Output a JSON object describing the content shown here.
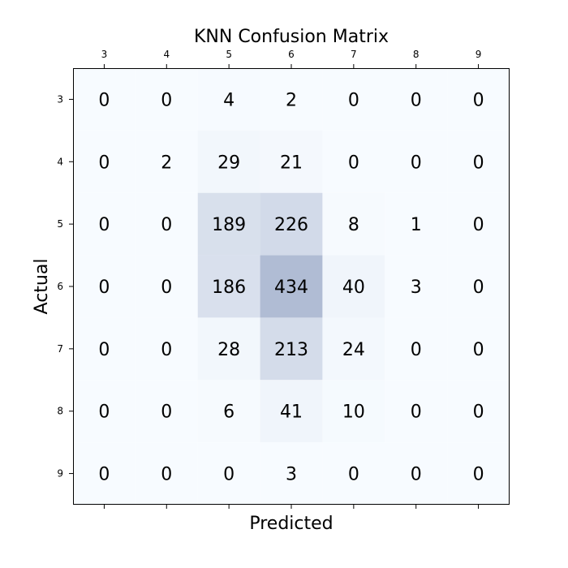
{
  "chart_data": {
    "type": "heatmap",
    "title": "KNN Confusion Matrix",
    "xlabel": "Predicted",
    "ylabel": "Actual",
    "x_categories": [
      "3",
      "4",
      "5",
      "6",
      "7",
      "8",
      "9"
    ],
    "y_categories": [
      "3",
      "4",
      "5",
      "6",
      "7",
      "8",
      "9"
    ],
    "values": [
      [
        0,
        0,
        4,
        2,
        0,
        0,
        0
      ],
      [
        0,
        2,
        29,
        21,
        0,
        0,
        0
      ],
      [
        0,
        0,
        189,
        226,
        8,
        1,
        0
      ],
      [
        0,
        0,
        186,
        434,
        40,
        3,
        0
      ],
      [
        0,
        0,
        28,
        213,
        24,
        0,
        0
      ],
      [
        0,
        0,
        6,
        41,
        10,
        0,
        0
      ],
      [
        0,
        0,
        0,
        3,
        0,
        0,
        0
      ]
    ],
    "colormap": "Blues",
    "x_ticks_position": "top",
    "grid": false,
    "legend": false
  }
}
